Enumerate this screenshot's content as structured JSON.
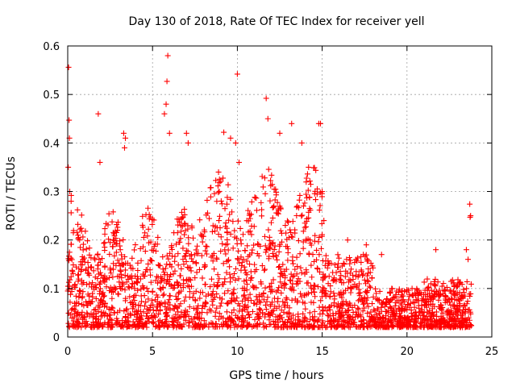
{
  "chart_data": {
    "type": "scatter",
    "title": "Day 130 of 2018, Rate Of TEC Index for receiver yell",
    "xlabel": "GPS time / hours",
    "ylabel": "ROTI / TECUs",
    "xlim": [
      0,
      25
    ],
    "ylim": [
      0,
      0.6
    ],
    "xticks": [
      0,
      5,
      10,
      15,
      20,
      25
    ],
    "yticks": [
      0,
      0.1,
      0.2,
      0.3,
      0.4,
      0.5,
      0.6
    ],
    "xtick_labels": [
      "0",
      "5",
      "10",
      "15",
      "20",
      "25"
    ],
    "ytick_labels": [
      "0",
      "0.1",
      "0.2",
      "0.3",
      "0.4",
      "0.5",
      "0.6"
    ],
    "grid": true,
    "marker": "+",
    "color": "#ff0000",
    "series": [
      {
        "name": "ROTI",
        "points": [
          [
            0.05,
            0.556
          ],
          [
            0.08,
            0.447
          ],
          [
            0.1,
            0.41
          ],
          [
            0.03,
            0.35
          ],
          [
            0.12,
            0.3
          ],
          [
            0.2,
            0.28
          ],
          [
            1.8,
            0.46
          ],
          [
            1.9,
            0.36
          ],
          [
            3.3,
            0.42
          ],
          [
            3.4,
            0.41
          ],
          [
            3.35,
            0.39
          ],
          [
            5.7,
            0.46
          ],
          [
            5.8,
            0.48
          ],
          [
            5.85,
            0.527
          ],
          [
            5.9,
            0.58
          ],
          [
            6.0,
            0.42
          ],
          [
            7.0,
            0.42
          ],
          [
            7.1,
            0.4
          ],
          [
            9.2,
            0.422
          ],
          [
            9.6,
            0.41
          ],
          [
            9.9,
            0.4
          ],
          [
            10.0,
            0.542
          ],
          [
            10.1,
            0.36
          ],
          [
            11.7,
            0.492
          ],
          [
            11.8,
            0.45
          ],
          [
            12.5,
            0.42
          ],
          [
            13.2,
            0.44
          ],
          [
            13.8,
            0.4
          ],
          [
            14.2,
            0.35
          ],
          [
            14.8,
            0.44
          ],
          [
            14.9,
            0.44
          ],
          [
            15.0,
            0.3
          ],
          [
            15.1,
            0.24
          ],
          [
            16.5,
            0.2
          ],
          [
            17.0,
            0.16
          ],
          [
            17.6,
            0.19
          ],
          [
            18.5,
            0.17
          ],
          [
            19.1,
            0.1
          ],
          [
            20.3,
            0.1
          ],
          [
            21.2,
            0.1
          ],
          [
            21.7,
            0.18
          ],
          [
            22.8,
            0.09
          ],
          [
            23.5,
            0.18
          ],
          [
            23.6,
            0.16
          ],
          [
            23.7,
            0.274
          ],
          [
            23.75,
            0.25
          ],
          [
            23.72,
            0.247
          ]
        ]
      }
    ]
  }
}
